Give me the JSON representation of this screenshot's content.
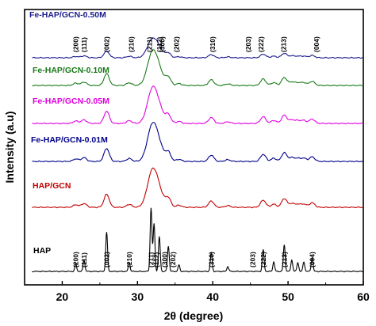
{
  "chart_data": {
    "type": "line",
    "xlabel": "2θ (degree)",
    "ylabel": "Intensity (a.u)",
    "xlim": [
      15,
      60
    ],
    "x_ticks": [
      "20",
      "30",
      "40",
      "50",
      "60"
    ],
    "grid": false,
    "legend_placement": "inline labels above each trace",
    "peaks": [
      {
        "x": 21.8,
        "height": 0.12
      },
      {
        "x": 22.9,
        "height": 0.18
      },
      {
        "x": 25.9,
        "height": 0.62
      },
      {
        "x": 28.9,
        "height": 0.14
      },
      {
        "x": 31.8,
        "height": 1.0
      },
      {
        "x": 32.2,
        "height": 0.75
      },
      {
        "x": 32.9,
        "height": 0.55
      },
      {
        "x": 34.1,
        "height": 0.4
      },
      {
        "x": 35.5,
        "height": 0.1
      },
      {
        "x": 39.8,
        "height": 0.3
      },
      {
        "x": 42.0,
        "height": 0.08
      },
      {
        "x": 46.7,
        "height": 0.34
      },
      {
        "x": 48.1,
        "height": 0.15
      },
      {
        "x": 49.5,
        "height": 0.42
      },
      {
        "x": 50.5,
        "height": 0.18
      },
      {
        "x": 51.3,
        "height": 0.14
      },
      {
        "x": 52.1,
        "height": 0.15
      },
      {
        "x": 53.2,
        "height": 0.22
      }
    ],
    "series": [
      {
        "name": "HAP",
        "color": "#000000",
        "offset": 0,
        "broadening": 0.12,
        "peak_scale": 1.0
      },
      {
        "name": "HAP/GCN",
        "color": "#c00000",
        "offset": 1,
        "broadening": 0.35,
        "peak_scale": 0.55
      },
      {
        "name": "Fe-HAP/GCN-0.01M",
        "color": "#00008b",
        "offset": 2,
        "broadening": 0.35,
        "peak_scale": 0.55
      },
      {
        "name": "Fe-HAP/GCN-0.05M",
        "color": "#e000e0",
        "offset": 3,
        "broadening": 0.35,
        "peak_scale": 0.52
      },
      {
        "name": "Fe-HAP/GCN-0.10M",
        "color": "#1a7a1a",
        "offset": 4,
        "broadening": 0.35,
        "peak_scale": 0.5
      },
      {
        "name": "Fe-HAP/GCN-0.50M",
        "color": "#1a1a8b",
        "offset": 5,
        "broadening": 0.35,
        "peak_scale": 0.28
      }
    ],
    "hkl_labels_bottom": [
      {
        "text": "(200)",
        "x": 21.8
      },
      {
        "text": "(111)",
        "x": 22.9
      },
      {
        "text": "(002)",
        "x": 25.9
      },
      {
        "text": "(210)",
        "x": 28.9
      },
      {
        "text": "(211)",
        "x": 31.8
      },
      {
        "text": "(112)",
        "x": 32.5
      },
      {
        "text": "(300)",
        "x": 33.6
      },
      {
        "text": "(202)",
        "x": 34.7
      },
      {
        "text": "(310)",
        "x": 39.8
      },
      {
        "text": "(203)",
        "x": 45.3
      },
      {
        "text": "(222)",
        "x": 46.7
      },
      {
        "text": "(213)",
        "x": 49.5
      },
      {
        "text": "(004)",
        "x": 53.2
      }
    ],
    "hkl_labels_top": [
      {
        "text": "(200)",
        "x": 21.8
      },
      {
        "text": "(111)",
        "x": 22.9
      },
      {
        "text": "(002)",
        "x": 25.9
      },
      {
        "text": "(210)",
        "x": 29.2
      },
      {
        "text": "(211)",
        "x": 31.6
      },
      {
        "text": "(112)",
        "x": 32.9
      },
      {
        "text": "(300)",
        "x": 33.3
      },
      {
        "text": "(202)",
        "x": 35.2
      },
      {
        "text": "(310)",
        "x": 40.0
      },
      {
        "text": "(203)",
        "x": 44.7
      },
      {
        "text": "(222)",
        "x": 46.4
      },
      {
        "text": "(213)",
        "x": 49.4
      },
      {
        "text": "(004)",
        "x": 53.8
      }
    ]
  }
}
